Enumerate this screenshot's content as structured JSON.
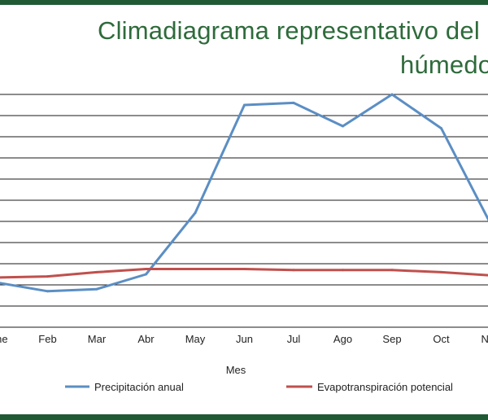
{
  "chart_data": {
    "type": "line",
    "title_line_1": "Climadiagrama representativo del bosque",
    "title_line_2": "húmedo",
    "xlabel": "Mes",
    "ylabel": "",
    "categories": [
      "Ene",
      "Feb",
      "Mar",
      "Abr",
      "May",
      "Jun",
      "Jul",
      "Ago",
      "Sep",
      "Oct",
      "Nov"
    ],
    "ylim": [
      0,
      11
    ],
    "grid": true,
    "legend_position": "bottom",
    "series": [
      {
        "name": "Precipitación anual",
        "color": "#5b8ec4",
        "values": [
          2.1,
          1.7,
          1.8,
          2.5,
          5.4,
          10.5,
          10.6,
          9.5,
          11.0,
          9.4,
          4.9
        ]
      },
      {
        "name": "Evapotranspiración potencial",
        "color": "#c0504d",
        "values": [
          2.35,
          2.4,
          2.6,
          2.75,
          2.75,
          2.75,
          2.7,
          2.7,
          2.7,
          2.6,
          2.45
        ]
      }
    ]
  }
}
